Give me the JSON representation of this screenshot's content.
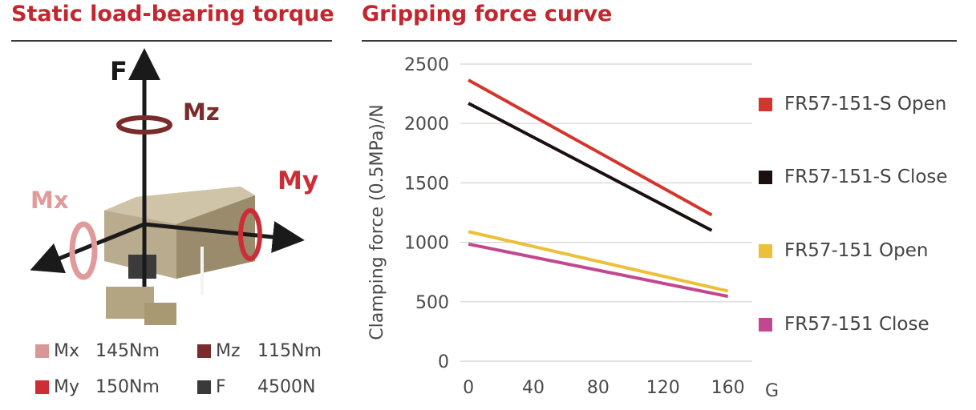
{
  "left_panel": {
    "title": "Static load-bearing torque",
    "axis_labels": {
      "f": "F",
      "mz": "Mz",
      "my": "My",
      "mx": "Mx"
    },
    "specs": [
      {
        "label": "Mx",
        "value": "145Nm",
        "color": "#d99898"
      },
      {
        "label": "Mz",
        "value": "115Nm",
        "color": "#7a2c2c"
      },
      {
        "label": "My",
        "value": "150Nm",
        "color": "#cc2e35"
      },
      {
        "label": "F",
        "value": "4500N",
        "color": "#3a3a3a"
      }
    ]
  },
  "right_panel": {
    "title": "Gripping force curve"
  },
  "chart_data": {
    "type": "line",
    "title": "",
    "xlabel": "Gripping distance/mm",
    "ylabel": "Clamping force (0.5MPa)/N",
    "x_ticks": [
      0,
      40,
      80,
      120,
      160
    ],
    "y_ticks": [
      0,
      500,
      1000,
      1500,
      2000,
      2500
    ],
    "xlim": [
      -5,
      175
    ],
    "ylim": [
      0,
      2500
    ],
    "grid": "horizontal",
    "legend": "right",
    "series": [
      {
        "name": "FR57-151-S Open",
        "color": "#d4352d",
        "x": [
          0,
          150
        ],
        "y": [
          2365,
          1230
        ]
      },
      {
        "name": "FR57-151-S Close",
        "color": "#1a1010",
        "x": [
          0,
          150
        ],
        "y": [
          2170,
          1100
        ]
      },
      {
        "name": "FR57-151 Open",
        "color": "#ecc038",
        "x": [
          0,
          160
        ],
        "y": [
          1090,
          590
        ]
      },
      {
        "name": "FR57-151 Close",
        "color": "#c1488f",
        "x": [
          0,
          160
        ],
        "y": [
          985,
          545
        ]
      }
    ]
  }
}
